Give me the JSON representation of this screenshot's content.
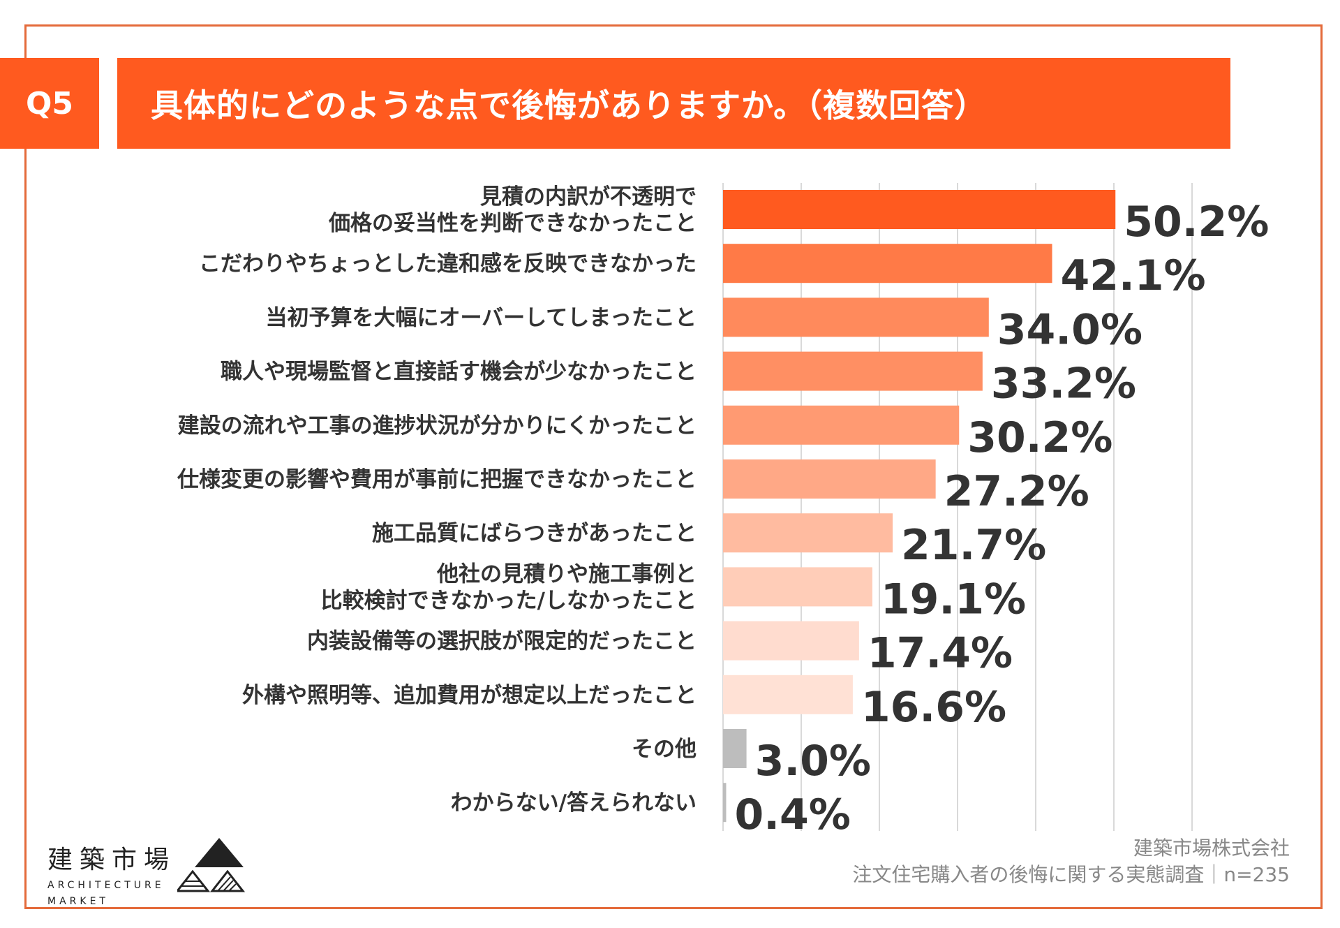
{
  "header": {
    "question_number": "Q5",
    "title": "具体的にどのような点で後悔がありますか。（複数回答）"
  },
  "colors": {
    "accent": "#ff5a1f",
    "frame": "#e46a3a",
    "other_bar": "#bdbdbd",
    "grid": "#d9d9d9"
  },
  "chart_data": {
    "type": "bar",
    "orientation": "horizontal",
    "title": "具体的にどのような点で後悔がありますか。（複数回答）",
    "xlim": [
      0,
      60
    ],
    "unit": "%",
    "grid": true,
    "categories": [
      "見積の内訳が不透明で\n価格の妥当性を判断できなかったこと",
      "こだわりやちょっとした違和感を反映できなかった",
      "当初予算を大幅にオーバーしてしまったこと",
      "職人や現場監督と直接話す機会が少なかったこと",
      "建設の流れや工事の進捗状況が分かりにくかったこと",
      "仕様変更の影響や費用が事前に把握できなかったこと",
      "施工品質にばらつきがあったこと",
      "他社の見積りや施工事例と\n比較検討できなかった/しなかったこと",
      "内装設備等の選択肢が限定的だったこと",
      "外構や照明等、追加費用が想定以上だったこと",
      "その他",
      "わからない/答えられない"
    ],
    "values": [
      50.2,
      42.1,
      34.0,
      33.2,
      30.2,
      27.2,
      21.7,
      19.1,
      17.4,
      16.6,
      3.0,
      0.4
    ],
    "value_labels": [
      "50.2%",
      "42.1%",
      "34.0%",
      "33.2%",
      "30.2%",
      "27.2%",
      "21.7%",
      "19.1%",
      "17.4%",
      "16.6%",
      "3.0%",
      "0.4%"
    ],
    "bar_colors": [
      "#ff5a1f",
      "#ff7a47",
      "#ff8a5c",
      "#ff8f63",
      "#ff9a72",
      "#ffa886",
      "#ffbba0",
      "#ffcdb8",
      "#ffdccf",
      "#ffe1d5",
      "#bdbdbd",
      "#bdbdbd"
    ]
  },
  "footer": {
    "company": "建築市場株式会社",
    "survey": "注文住宅購入者の後悔に関する実態調査｜n=235"
  },
  "logo": {
    "name_jp": "建築市場",
    "name_en_line1": "ARCHITECTURE",
    "name_en_line2": "MARKET"
  }
}
